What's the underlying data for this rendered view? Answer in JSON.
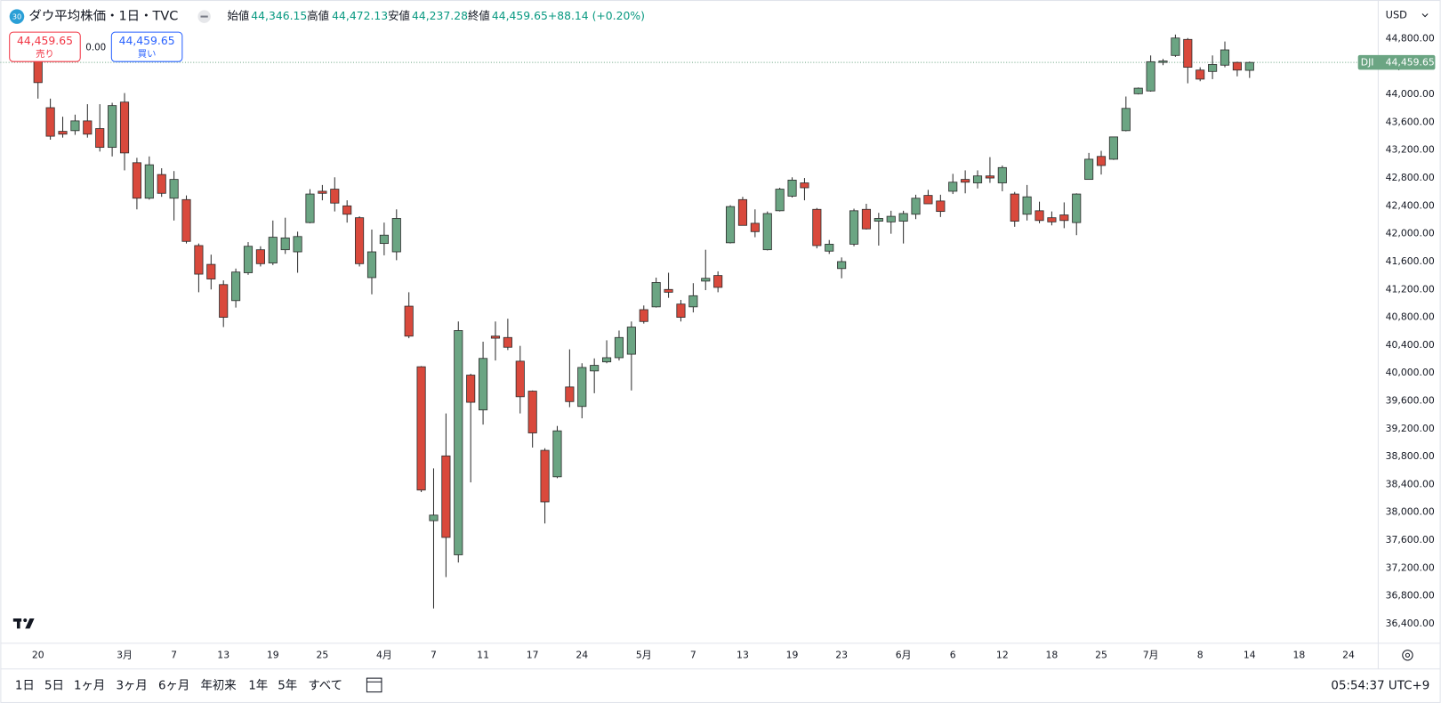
{
  "chart_data": {
    "type": "candlestick",
    "badge": "30",
    "title": "ダウ平均株価・1日・TVC",
    "ohlc_legend": [
      {
        "label": "始値",
        "value": "44,346.15"
      },
      {
        "label": "高値",
        "value": "44,472.13"
      },
      {
        "label": "安値",
        "value": "44,237.28"
      },
      {
        "label": "終値",
        "value": "44,459.65"
      }
    ],
    "change": "+88.14 (+0.20%)",
    "order_panel": {
      "sell_price": "44,459.65",
      "sell_label": "売り",
      "spread": "0.00",
      "buy_price": "44,459.65",
      "buy_label": "買い"
    },
    "currency": "USD",
    "symbol": "DJI",
    "last_price": {
      "value": 44459.65,
      "label": "44,459.65"
    },
    "up_color": "#6ba583",
    "down_color": "#d9493c",
    "categories": [
      "20",
      null,
      null,
      null,
      null,
      null,
      null,
      "3月",
      null,
      null,
      null,
      "7",
      null,
      null,
      null,
      "13",
      null,
      null,
      null,
      "19",
      null,
      null,
      null,
      "25",
      null,
      null,
      null,
      null,
      "4月",
      null,
      null,
      null,
      "7",
      null,
      null,
      null,
      "11",
      null,
      null,
      null,
      "17",
      null,
      null,
      null,
      "24",
      null,
      null,
      null,
      null,
      "5月",
      null,
      null,
      null,
      "7",
      null,
      null,
      null,
      "13",
      null,
      null,
      null,
      "19",
      null,
      null,
      null,
      "23",
      null,
      null,
      null,
      null,
      "6月",
      null,
      null,
      null,
      "6",
      null,
      null,
      null,
      "12",
      null,
      null,
      null,
      "18",
      null,
      null,
      null,
      "25",
      null,
      null,
      null,
      "7月",
      null,
      null,
      null,
      "8",
      null,
      null,
      null,
      "14",
      null,
      null,
      null,
      "18",
      null,
      null,
      null,
      "24"
    ],
    "open": [
      44560,
      43810,
      43470,
      43480,
      43620,
      43510,
      43240,
      43890,
      43020,
      42510,
      42850,
      42510,
      42490,
      41830,
      41560,
      41270,
      41040,
      41440,
      41770,
      41580,
      41770,
      41740,
      42160,
      42610,
      42640,
      42400,
      42230,
      41370,
      41860,
      41740,
      40960,
      40090,
      37880,
      38810,
      37390,
      39970,
      39470,
      40530,
      40510,
      40170,
      39740,
      38890,
      38510,
      39800,
      39520,
      40030,
      40160,
      40220,
      40270,
      40910,
      40950,
      41200,
      40990,
      40950,
      41320,
      41400,
      41870,
      42490,
      42150,
      41770,
      42330,
      42540,
      42730,
      42350,
      41750,
      41500,
      41850,
      42350,
      42180,
      42170,
      42180,
      42280,
      42550,
      42470,
      42610,
      42780,
      42730,
      42830,
      42730,
      42570,
      42280,
      42330,
      42230,
      42270,
      42160,
      42780,
      43110,
      43070,
      43480,
      44010,
      44050,
      44460,
      44560,
      44790,
      44350,
      44330,
      44420,
      44460,
      44346.15,
      null,
      null,
      null,
      null,
      null,
      null,
      null,
      null
    ],
    "high": [
      44630,
      43940,
      43680,
      43710,
      43860,
      43860,
      43880,
      44020,
      43090,
      43110,
      42940,
      42900,
      42550,
      41860,
      41700,
      41330,
      41500,
      41880,
      41820,
      42190,
      42230,
      42030,
      42640,
      42700,
      42810,
      42480,
      42250,
      42060,
      42160,
      42350,
      41160,
      40100,
      38630,
      39420,
      40740,
      39990,
      40450,
      40740,
      40780,
      40390,
      39750,
      38920,
      39240,
      40340,
      40140,
      40210,
      40470,
      40610,
      40740,
      40970,
      41370,
      41440,
      41050,
      41290,
      41770,
      41460,
      42410,
      42530,
      42350,
      42320,
      42660,
      42810,
      42800,
      42370,
      41910,
      41660,
      42360,
      42430,
      42300,
      42330,
      42330,
      42560,
      42630,
      42560,
      42860,
      42910,
      42910,
      43100,
      42980,
      42600,
      42700,
      42460,
      42320,
      42450,
      42580,
      43160,
      43190,
      43390,
      43970,
      44100,
      44560,
      44510,
      44860,
      44810,
      44390,
      44560,
      44760,
      44470,
      44472.13,
      null,
      null,
      null,
      null,
      null,
      null,
      null,
      null
    ],
    "low": [
      43940,
      43350,
      43380,
      43420,
      43380,
      43180,
      43110,
      42910,
      42350,
      42490,
      42530,
      42190,
      41860,
      41160,
      41200,
      40660,
      40940,
      41410,
      41530,
      41550,
      41710,
      41440,
      42150,
      42480,
      42320,
      42160,
      41530,
      41130,
      41690,
      41620,
      40500,
      38290,
      36620,
      37070,
      37280,
      38430,
      39260,
      40180,
      40330,
      39420,
      38930,
      37840,
      38490,
      39510,
      39350,
      39710,
      40140,
      40180,
      39750,
      40710,
      40940,
      41080,
      40740,
      40870,
      41190,
      41160,
      41860,
      42120,
      41950,
      41760,
      42320,
      42520,
      42480,
      41790,
      41710,
      41360,
      41820,
      42060,
      41830,
      42000,
      41860,
      42210,
      42430,
      42240,
      42570,
      42580,
      42650,
      42730,
      42610,
      42100,
      42190,
      42150,
      42120,
      42080,
      41980,
      42780,
      42850,
      43060,
      43470,
      44000,
      44040,
      44420,
      44540,
      44160,
      44190,
      44220,
      44390,
      44260,
      44237.28,
      null,
      null,
      null,
      null,
      null,
      null,
      null,
      null
    ],
    "close": [
      44170,
      43400,
      43430,
      43620,
      43430,
      43240,
      43840,
      43160,
      42510,
      42990,
      42580,
      42780,
      41890,
      41420,
      41350,
      40800,
      41450,
      41820,
      41570,
      41950,
      41940,
      41960,
      42570,
      42580,
      42440,
      42280,
      41570,
      41740,
      41980,
      42220,
      40530,
      38320,
      37960,
      37640,
      40610,
      39580,
      40210,
      40500,
      40370,
      39660,
      39140,
      38150,
      39170,
      39590,
      40080,
      40110,
      40220,
      40510,
      40660,
      40740,
      41300,
      41160,
      40800,
      41110,
      41360,
      41230,
      42390,
      42120,
      42030,
      42290,
      42640,
      42770,
      42660,
      41830,
      41850,
      41600,
      42330,
      42070,
      42220,
      42250,
      42290,
      42510,
      42430,
      42320,
      42740,
      42740,
      42830,
      42800,
      42950,
      42180,
      42530,
      42190,
      42170,
      42190,
      42570,
      43070,
      42980,
      43390,
      43800,
      44090,
      44470,
      44480,
      44810,
      44390,
      44220,
      44430,
      44640,
      44350,
      44459.65,
      null,
      null,
      null,
      null,
      null,
      null,
      null,
      null
    ],
    "ylim": [
      36120,
      45290
    ],
    "yticks": [
      {
        "value": 36400,
        "label": "36,400.00"
      },
      {
        "value": 36800,
        "label": "36,800.00"
      },
      {
        "value": 37200,
        "label": "37,200.00"
      },
      {
        "value": 37600,
        "label": "37,600.00"
      },
      {
        "value": 38000,
        "label": "38,000.00"
      },
      {
        "value": 38400,
        "label": "38,400.00"
      },
      {
        "value": 38800,
        "label": "38,800.00"
      },
      {
        "value": 39200,
        "label": "39,200.00"
      },
      {
        "value": 39600,
        "label": "39,600.00"
      },
      {
        "value": 40000,
        "label": "40,000.00"
      },
      {
        "value": 40400,
        "label": "40,400.00"
      },
      {
        "value": 40800,
        "label": "40,800.00"
      },
      {
        "value": 41200,
        "label": "41,200.00"
      },
      {
        "value": 41600,
        "label": "41,600.00"
      },
      {
        "value": 42000,
        "label": "42,000.00"
      },
      {
        "value": 42400,
        "label": "42,400.00"
      },
      {
        "value": 42800,
        "label": "42,800.00"
      },
      {
        "value": 43200,
        "label": "43,200.00"
      },
      {
        "value": 43600,
        "label": "43,600.00"
      },
      {
        "value": 44000,
        "label": "44,000.00"
      },
      {
        "value": 44400,
        "label": "44,400.00"
      },
      {
        "value": 44800,
        "label": "44,800.00"
      }
    ],
    "grid": false
  },
  "toolbar": {
    "ranges": [
      "1日",
      "5日",
      "1ヶ月",
      "3ヶ月",
      "6ヶ月",
      "年初来",
      "1年",
      "5年",
      "すべて"
    ],
    "clock": "05:54:37 UTC+9"
  }
}
